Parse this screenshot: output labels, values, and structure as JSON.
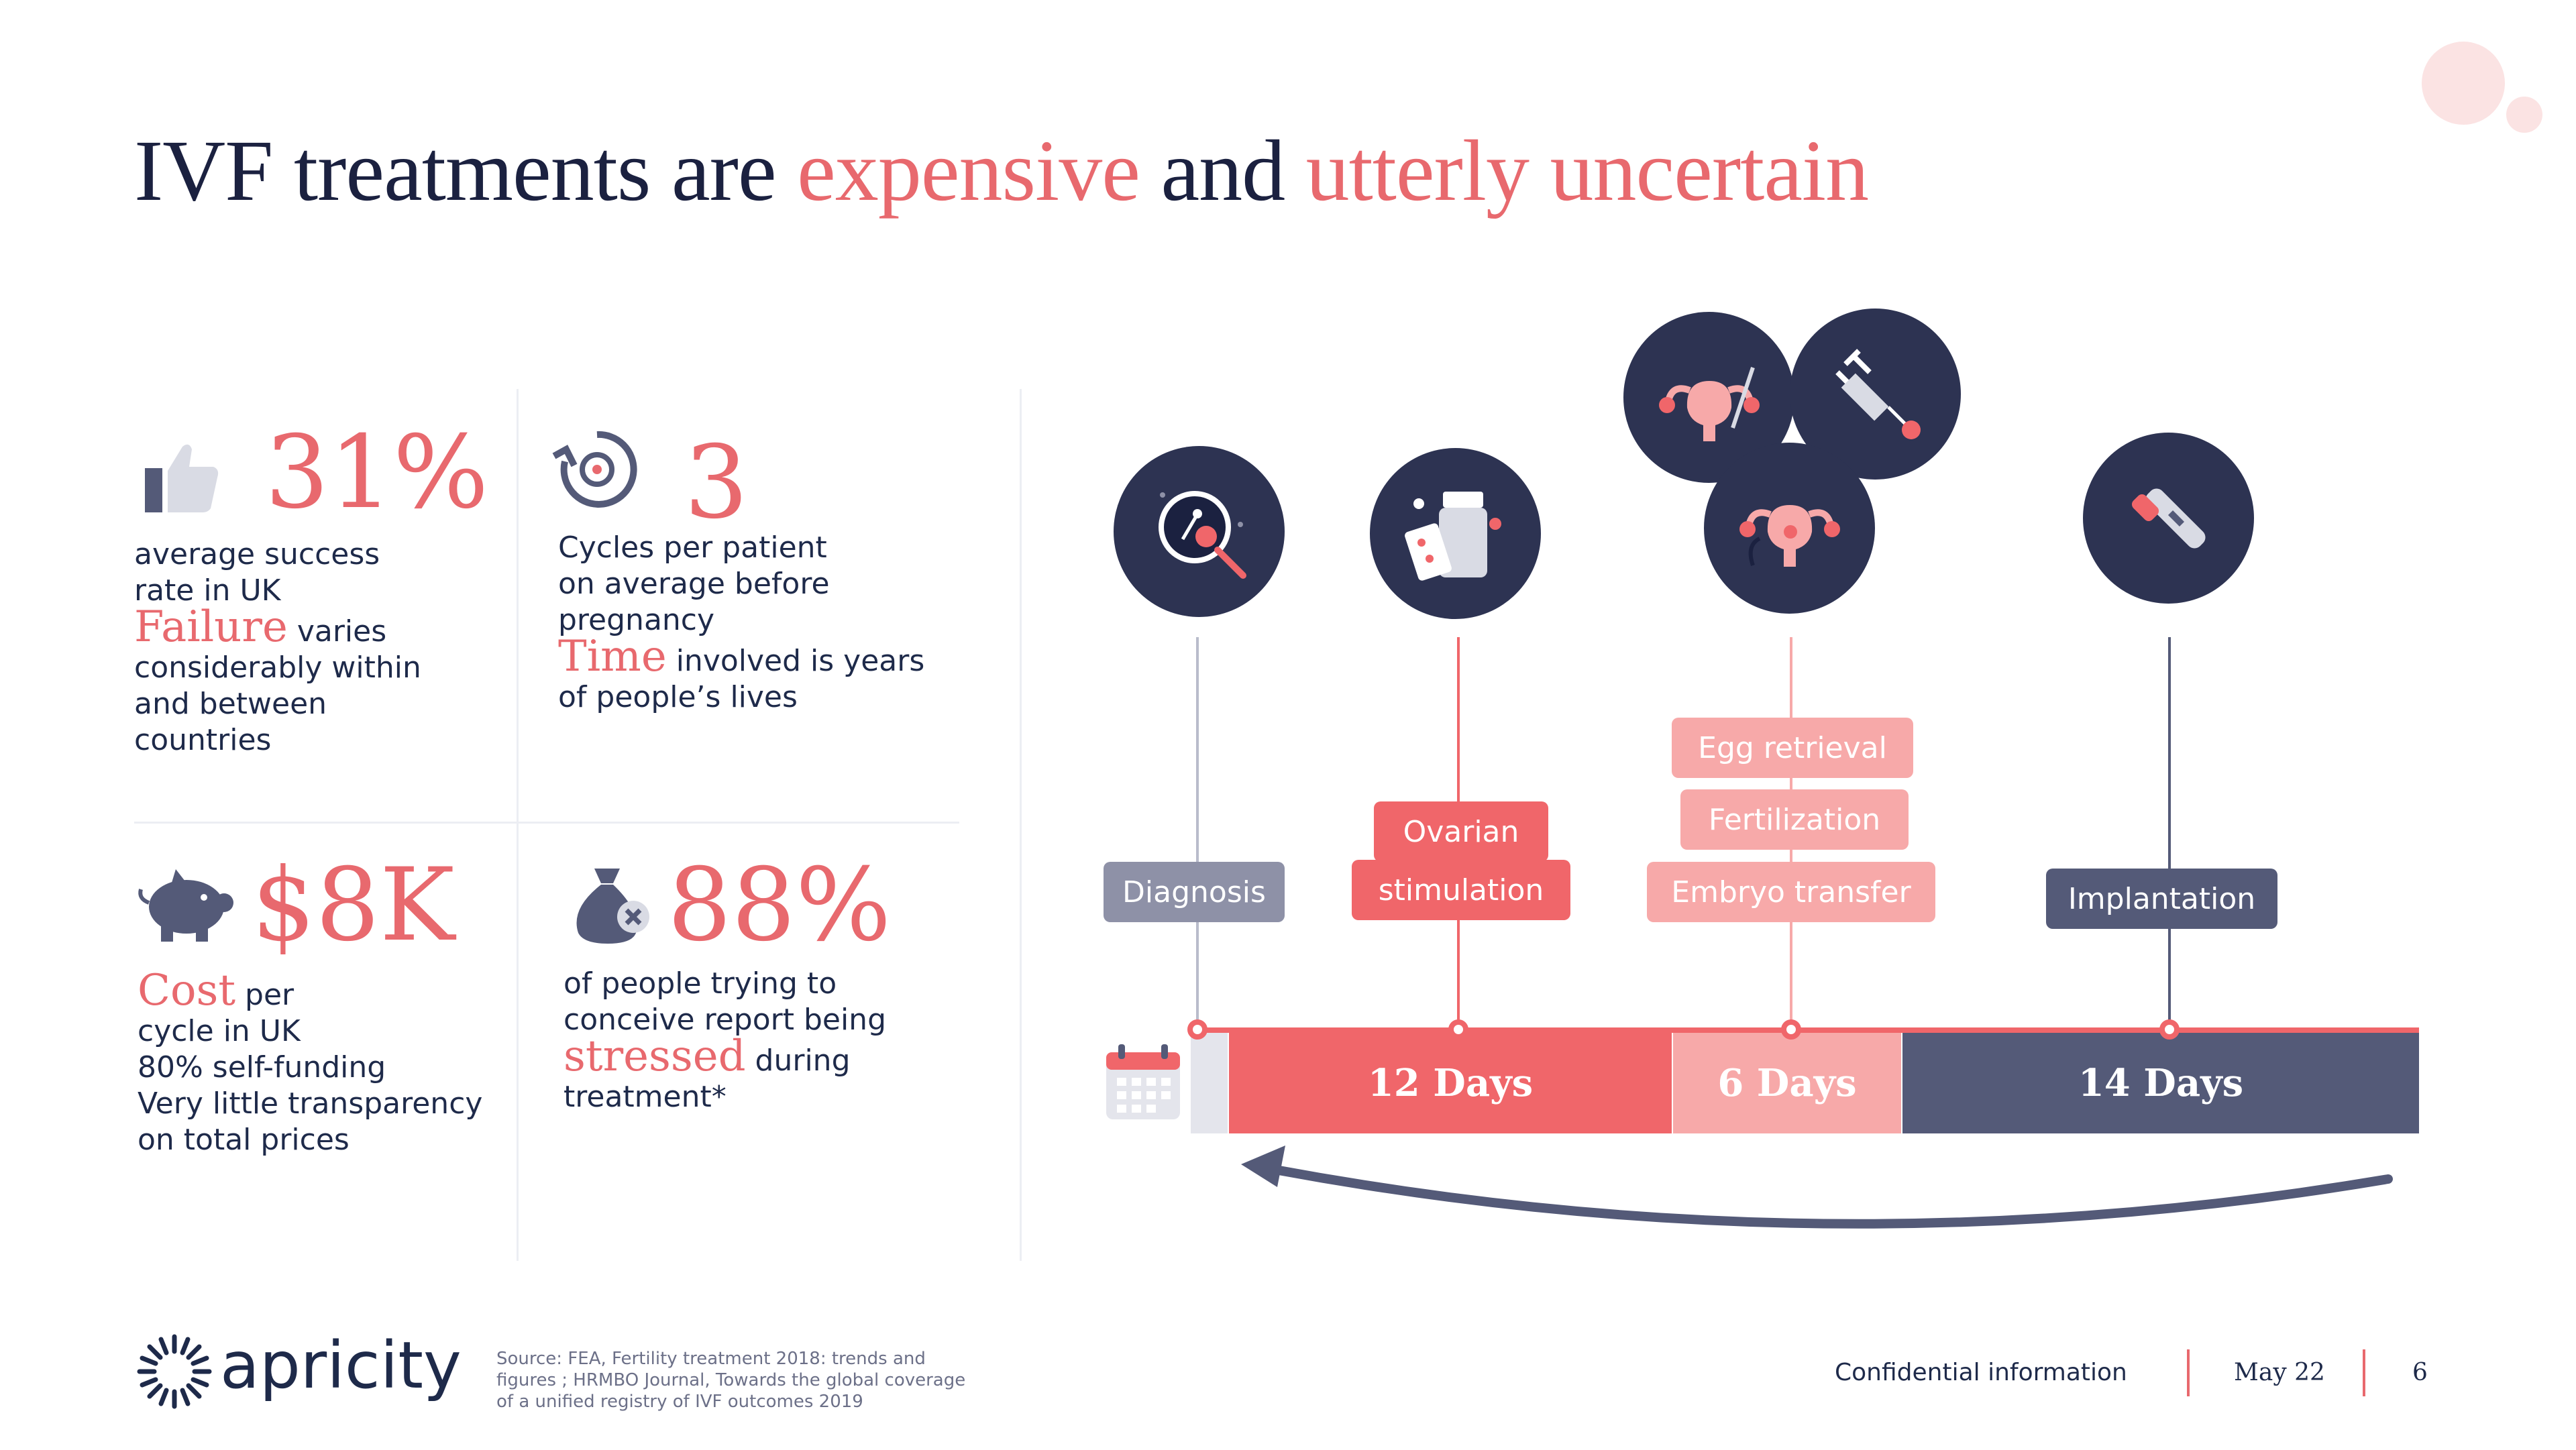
{
  "title": {
    "part1": "IVF treatments are ",
    "part2": "expensive",
    "part3": " and ",
    "part4": "utterly uncertain"
  },
  "stats": {
    "success": {
      "icon": "thumbs-up-icon",
      "value": "31%",
      "line1": "average success",
      "line2": "rate in UK",
      "hl": "Failure",
      "line3": " varies",
      "line4": "considerably within",
      "line5": "and between",
      "line6": "countries"
    },
    "cycles": {
      "icon": "refresh-cycle-icon",
      "value": "3",
      "line1": "Cycles per patient",
      "line2": "on average before",
      "line3": "pregnancy",
      "hl": "Time",
      "line4": " involved is years",
      "line5": "of people’s lives"
    },
    "cost": {
      "icon": "piggy-bank-icon",
      "value": "$8K",
      "hl": "Cost",
      "line1": " per",
      "line2": "cycle in UK",
      "line3": "80% self-funding",
      "line4": "Very little transparency",
      "line5": "on total prices"
    },
    "stress": {
      "icon": "money-bag-icon",
      "value": "88%",
      "line1": "of people trying to",
      "line2": "conceive report being",
      "hl": "stressed",
      "line3": " during",
      "line4": "treatment*"
    }
  },
  "timeline": {
    "steps": {
      "diagnosis": "Diagnosis",
      "ovarian1": "Ovarian",
      "ovarian2": "stimulation",
      "egg": "Egg retrieval",
      "fert": "Fertilization",
      "embryo": "Embryo transfer",
      "implant": "Implantation"
    },
    "segments": {
      "s1": "12 Days",
      "s2": "6 Days",
      "s3": "14 Days"
    },
    "colors": {
      "red": "#f0666a",
      "pink": "#f7a9a9",
      "navy": "#545a78",
      "circle": "#2d3352"
    }
  },
  "footer": {
    "brand": "apricity",
    "source1": "Source: FEA, Fertility treatment 2018: trends and",
    "source2": "figures ; HRMBO Journal, Towards the global coverage",
    "source3": "of a unified registry of IVF outcomes 2019",
    "confidential": "Confidential information",
    "date": "May 22",
    "page": "6"
  }
}
